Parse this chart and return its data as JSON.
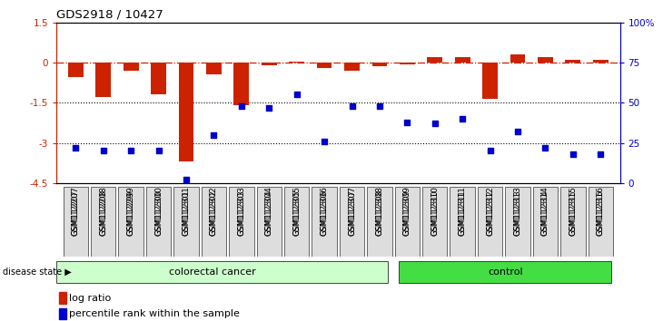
{
  "title": "GDS2918 / 10427",
  "samples": [
    "GSM112207",
    "GSM112208",
    "GSM112299",
    "GSM112300",
    "GSM112301",
    "GSM112302",
    "GSM112303",
    "GSM112304",
    "GSM112305",
    "GSM112306",
    "GSM112307",
    "GSM112308",
    "GSM112309",
    "GSM112310",
    "GSM112311",
    "GSM112312",
    "GSM112313",
    "GSM112314",
    "GSM112315",
    "GSM112316"
  ],
  "log_ratio": [
    -0.55,
    -1.3,
    -0.3,
    -1.2,
    -3.7,
    -0.45,
    -1.6,
    -0.1,
    0.05,
    -0.2,
    -0.3,
    -0.15,
    -0.05,
    0.2,
    0.22,
    -1.35,
    0.3,
    0.2,
    0.1,
    0.1
  ],
  "percentile_pct": [
    22,
    20,
    20,
    20,
    2,
    30,
    48,
    47,
    55,
    26,
    48,
    48,
    38,
    37,
    40,
    20,
    32,
    22,
    18,
    18
  ],
  "colorectal_count": 12,
  "control_count": 8,
  "bar_color": "#cc2200",
  "dot_color": "#0000cc",
  "yticks_left": [
    1.5,
    0,
    -1.5,
    -3.0,
    -4.5
  ],
  "ytick_labels_left": [
    "1.5",
    "0",
    "-1.5",
    "-3",
    "-4.5"
  ],
  "yticks_right": [
    100,
    75,
    50,
    25,
    0
  ],
  "ytick_labels_right": [
    "100%",
    "75",
    "50",
    "25",
    "0"
  ],
  "legend_bar": "log ratio",
  "legend_dot": "percentile rank within the sample",
  "disease_label": "disease state",
  "group1_label": "colorectal cancer",
  "group2_label": "control",
  "light_green": "#ccffcc",
  "dark_green": "#44dd44"
}
